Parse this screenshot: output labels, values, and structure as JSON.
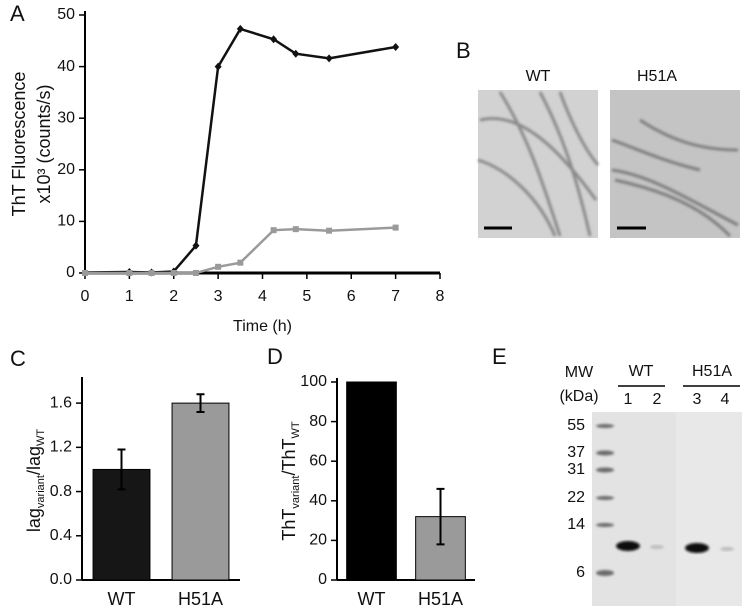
{
  "chart_data": [
    {
      "type": "line",
      "panel_label": "A",
      "y_label": [
        "ThT Fluorescence",
        "x10³ (counts/s)"
      ],
      "x_label": "Time (h)",
      "x": [
        0,
        1,
        1.5,
        2,
        2.5,
        3,
        3.5,
        4.25,
        4.75,
        5.5,
        7
      ],
      "series": [
        {
          "color": "#111111",
          "marker": "diamond",
          "values": [
            0.1,
            0.2,
            0.1,
            0.3,
            5.3,
            40,
            47.3,
            45.3,
            42.5,
            41.6,
            43.8
          ]
        },
        {
          "color": "#9a9a9a",
          "marker": "square",
          "values": [
            0,
            0,
            0,
            0,
            0,
            1.2,
            2,
            8.3,
            8.5,
            8.2,
            8.8
          ]
        }
      ],
      "xlim": [
        0,
        8
      ],
      "xticks": [
        0,
        1,
        2,
        3,
        4,
        5,
        6,
        7,
        8
      ],
      "ylim": [
        0,
        50
      ],
      "yticks": [
        0,
        10,
        20,
        30,
        40,
        50
      ]
    },
    {
      "type": "bar",
      "panel_label": "C",
      "y_label": [
        "lag",
        "variant",
        "/lag",
        "WT"
      ],
      "categories": [
        "WT",
        "H51A"
      ],
      "values": [
        1.0,
        1.6
      ],
      "errors": [
        0.18,
        0.08
      ],
      "colors": [
        "#161616",
        "#9a9a9a"
      ],
      "ylim": [
        0,
        1.8
      ],
      "yticks": [
        {
          "value": 0,
          "label": "0.0"
        },
        0.4,
        0.8,
        1.2,
        1.6
      ]
    },
    {
      "type": "bar",
      "panel_label": "D",
      "y_label": [
        "ThT",
        "variant",
        "/ThT",
        "WT"
      ],
      "categories": [
        "WT",
        "H51A"
      ],
      "values": [
        100,
        32
      ],
      "errors": [
        null,
        14
      ],
      "colors": [
        "#000000",
        "#9a9a9a"
      ],
      "ylim": [
        0,
        100
      ],
      "yticks": [
        0,
        20,
        40,
        60,
        80,
        100
      ]
    }
  ],
  "micrographs": {
    "panel_label": "B",
    "labels": [
      "WT",
      "H51A"
    ]
  },
  "gel": {
    "panel_label": "E",
    "mw": "MW",
    "unit": "(kDa)",
    "groups": [
      "WT",
      "H51A"
    ],
    "lanes": [
      "1",
      "2",
      "3",
      "4"
    ],
    "markers": [
      "55",
      "37",
      "31",
      "22",
      "14",
      "6"
    ]
  }
}
